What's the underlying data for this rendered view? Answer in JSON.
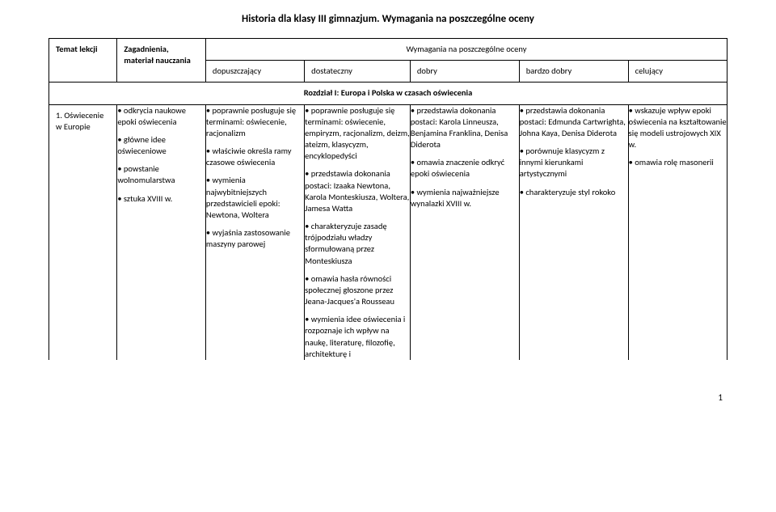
{
  "page_title": "Historia dla klasy III gimnazjum.  Wymagania na poszczególne oceny",
  "headers": {
    "topic": "Temat lekcji",
    "material": "Zagadnienia, materiał nauczania",
    "requirements_span": "Wymagania na poszczególne oceny",
    "grade1": "dopuszczający",
    "grade2": "dostateczny",
    "grade3": "dobry",
    "grade4": "bardzo dobry",
    "grade5": "celujący"
  },
  "section_title": "Rozdział I: Europa i Polska w czasach oświecenia",
  "row": {
    "topic": "1. Oświecenie w Europie",
    "material": [
      "• odkrycia naukowe epoki oświecenia",
      "• główne idee oświeceniowe",
      "• powstanie wolnomularstwa",
      "• sztuka XVIII w."
    ],
    "g1": [
      "• poprawnie posługuje się terminami: oświecenie, racjonalizm",
      "• właściwie określa ramy czasowe oświecenia",
      "• wymienia najwybitniejszych przedstawicieli epoki: Newtona, Woltera",
      "• wyjaśnia zastosowanie maszyny parowej"
    ],
    "g2": [
      "• poprawnie posługuje się terminami: oświecenie, empiryzm, racjonalizm, deizm, ateizm, klasycyzm, encyklopedyści",
      "• przedstawia dokonania postaci: Izaaka Newtona, Karola Monteskiusza, Woltera, Jamesa Watta",
      "• charakteryzuje zasadę trójpodziału władzy sformułowaną przez Monteskiusza",
      "• omawia hasła równości społecznej głoszone przez Jeana-Jacques'a Rousseau",
      "• wymienia idee oświecenia i rozpoznaje ich wpływ na naukę, literaturę, filozofię, architekturę i"
    ],
    "g3": [
      "• przedstawia dokonania postaci: Karola Linneusza, Benjamina Franklina, Denisa Diderota",
      "• omawia znaczenie odkryć epoki oświecenia",
      "• wymienia najważniejsze wynalazki XVIII w."
    ],
    "g4": [
      "• przedstawia dokonania postaci: Edmunda Cartwrighta, Johna Kaya, Denisa Diderota",
      "• porównuje klasycyzm z innymi kierunkami artystycznymi",
      "• charakteryzuje styl rokoko"
    ],
    "g5": [
      "• wskazuje wpływ epoki oświecenia na kształtowanie się modeli ustrojowych XIX w.",
      "• omawia rolę masonerii"
    ]
  },
  "page_number": "1"
}
